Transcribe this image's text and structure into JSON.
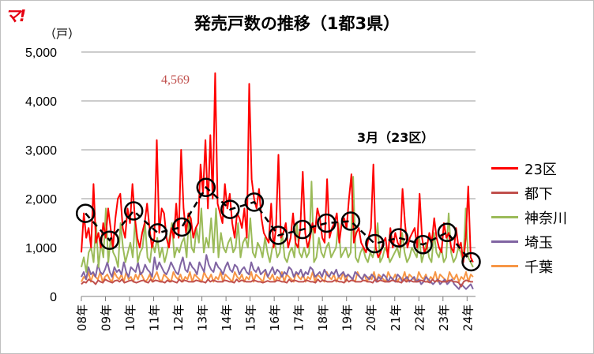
{
  "logo_text": "マ!",
  "chart_data": {
    "type": "line",
    "title": "発売戸数の推移（1都3県）",
    "ylabel": "（戸）",
    "ylim": [
      0,
      5000
    ],
    "yticks": [
      {
        "value": 0,
        "label": "0"
      },
      {
        "value": 1000,
        "label": "1,000"
      },
      {
        "value": 2000,
        "label": "2,000"
      },
      {
        "value": 3000,
        "label": "3,000"
      },
      {
        "value": 4000,
        "label": "4,000"
      },
      {
        "value": 5000,
        "label": "5,000"
      }
    ],
    "xticks": [
      "08年",
      "09年",
      "10年",
      "11年",
      "12年",
      "13年",
      "14年",
      "15年",
      "16年",
      "17年",
      "18年",
      "19年",
      "20年",
      "21年",
      "22年",
      "23年",
      "24年"
    ],
    "grid": true,
    "legend_position": "right",
    "annotations": [
      {
        "text": "4,569",
        "color": "#c0504d"
      },
      {
        "text": "3月（23区）",
        "color": "#000000"
      }
    ],
    "series": [
      {
        "name": "23区",
        "color": "#ff0000",
        "values": [
          900,
          1700,
          1200,
          1400,
          1000,
          2300,
          1100,
          1300,
          1000,
          1500,
          1200,
          1800,
          1400,
          1000,
          1600,
          2000,
          2100,
          1400,
          1200,
          1800,
          1500,
          2300,
          1600,
          1200,
          1000,
          1300,
          1500,
          1900,
          1400,
          1000,
          1200,
          3200,
          1300,
          1800,
          1700,
          1200,
          1000,
          1400,
          1200,
          1900,
          1200,
          3000,
          1800,
          1300,
          1700,
          1600,
          1200,
          1400,
          1500,
          2700,
          2100,
          3200,
          1800,
          3300,
          2000,
          4569,
          1900,
          1700,
          1500,
          2300,
          1800,
          2100,
          1500,
          1200,
          1700,
          1600,
          1400,
          1800,
          1200,
          4350,
          2400,
          2000,
          1800,
          2200,
          1600,
          1300,
          1200,
          1100,
          1900,
          1000,
          1400,
          2900,
          1200,
          1300,
          1500,
          1000,
          1200,
          1700,
          1100,
          1000,
          1400,
          2550,
          1300,
          1000,
          1200,
          1500,
          1300,
          1800,
          1600,
          1200,
          1100,
          2400,
          1200,
          1400,
          1500,
          1700,
          1100,
          1500,
          1600,
          1400,
          2000,
          2500,
          1100,
          1300,
          1400,
          1100,
          1000,
          900,
          1200,
          1400,
          2700,
          1000,
          800,
          900,
          1100,
          1200,
          800,
          1400,
          1000,
          1300,
          1100,
          1000,
          2200,
          1500,
          1000,
          1200,
          1300,
          1400,
          1000,
          2100,
          1200,
          900,
          1000,
          1300,
          1100,
          1600,
          1200,
          1000,
          900,
          1500,
          1200,
          1300,
          1000,
          900,
          1400,
          1000,
          1100,
          700,
          1200,
          2250,
          800,
          700
        ]
      },
      {
        "name": "都下",
        "color": "#c0504d",
        "values": [
          250,
          300,
          280,
          350,
          320,
          300,
          250,
          330,
          300,
          280,
          350,
          320,
          300,
          280,
          320,
          330,
          300,
          350,
          280,
          300,
          320,
          330,
          300,
          280,
          300,
          320,
          330,
          300,
          280,
          350,
          300,
          330,
          320,
          300,
          300,
          280,
          330,
          300,
          320,
          300,
          280,
          350,
          300,
          330,
          320,
          300,
          300,
          300,
          330,
          320,
          300,
          300,
          280,
          350,
          300,
          330,
          320,
          300,
          300,
          300,
          330,
          320,
          300,
          300,
          280,
          350,
          300,
          330,
          320,
          300,
          300,
          300,
          330,
          320,
          300,
          300,
          280,
          300,
          320,
          300,
          300,
          300,
          330,
          320,
          300,
          300,
          280,
          350,
          300,
          330,
          320,
          300,
          300,
          300,
          330,
          320,
          300,
          300,
          280,
          350,
          300,
          330,
          320,
          300,
          300,
          300,
          330,
          320,
          300,
          300,
          280,
          350,
          300,
          330,
          320,
          300,
          300,
          300,
          330,
          320,
          300,
          300,
          280,
          350,
          300,
          330,
          320,
          300,
          300,
          300,
          330,
          320,
          300,
          300,
          280,
          350,
          300,
          330,
          320,
          300,
          300,
          300,
          330,
          320,
          300,
          300,
          280,
          350,
          300,
          330,
          320,
          300,
          300,
          300,
          330,
          320,
          300,
          300,
          280,
          200,
          300,
          330,
          320,
          300,
          300
        ]
      },
      {
        "name": "神奈川",
        "color": "#9bbb59",
        "values": [
          600,
          800,
          500,
          900,
          1000,
          700,
          1500,
          600,
          1100,
          800,
          1800,
          700,
          1200,
          900,
          800,
          600,
          1500,
          1000,
          700,
          900,
          1100,
          800,
          1600,
          700,
          900,
          1000,
          1500,
          800,
          700,
          1100,
          900,
          1200,
          800,
          1000,
          700,
          900,
          1200,
          1500,
          800,
          1000,
          900,
          1100,
          1200,
          800,
          1700,
          1000,
          900,
          1400,
          1100,
          1800,
          900,
          1200,
          1000,
          1600,
          900,
          1800,
          800,
          1300,
          1000,
          900,
          1100,
          1200,
          900,
          1000,
          1500,
          800,
          1100,
          1200,
          1000,
          1600,
          900,
          800,
          1100,
          1000,
          800,
          1200,
          900,
          700,
          1000,
          1100,
          800,
          900,
          1300,
          800,
          700,
          900,
          1000,
          800,
          1500,
          900,
          800,
          1000,
          800,
          900,
          2350,
          700,
          800,
          1200,
          900,
          800,
          1000,
          1100,
          800,
          900,
          1000,
          1500,
          800,
          900,
          1000,
          800,
          900,
          2450,
          800,
          700,
          900,
          1000,
          800,
          700,
          900,
          800,
          1000,
          1500,
          700,
          800,
          1000,
          900,
          700,
          800,
          900,
          1000,
          800,
          1300,
          900,
          700,
          800,
          1000,
          900,
          800,
          1200,
          700,
          900,
          1100,
          800,
          700,
          1300,
          900,
          800,
          1000,
          700,
          800,
          1700,
          900,
          700,
          800,
          1000,
          900,
          700,
          1800,
          800,
          700,
          600
        ]
      },
      {
        "name": "埼玉",
        "color": "#8064a2",
        "values": [
          400,
          500,
          350,
          600,
          450,
          500,
          400,
          650,
          500,
          450,
          550,
          700,
          500,
          400,
          600,
          500,
          550,
          450,
          700,
          500,
          400,
          600,
          550,
          500,
          700,
          450,
          500,
          650,
          550,
          500,
          400,
          800,
          550,
          700,
          600,
          500,
          450,
          550,
          700,
          600,
          500,
          450,
          650,
          800,
          550,
          500,
          700,
          600,
          550,
          450,
          700,
          600,
          500,
          850,
          650,
          550,
          500,
          700,
          600,
          550,
          450,
          600,
          700,
          550,
          500,
          650,
          600,
          450,
          550,
          600,
          500,
          450,
          700,
          550,
          500,
          600,
          450,
          500,
          550,
          400,
          500,
          600,
          450,
          550,
          500,
          400,
          500,
          450,
          600,
          550,
          400,
          500,
          450,
          550,
          400,
          500,
          450,
          600,
          550,
          400,
          450,
          500,
          400,
          550,
          450,
          400,
          500,
          450,
          550,
          400,
          450,
          500,
          400,
          450,
          400,
          350,
          500,
          450,
          400,
          350,
          450,
          400,
          350,
          450,
          400,
          300,
          400,
          350,
          450,
          400,
          300,
          400,
          350,
          300,
          450,
          400,
          300,
          350,
          400,
          300,
          350,
          400,
          300,
          350,
          250,
          300,
          400,
          350,
          300,
          250,
          300,
          350,
          250,
          300,
          350,
          250,
          300,
          350,
          250,
          200,
          150,
          250,
          200,
          150,
          200,
          250,
          150
        ]
      },
      {
        "name": "千葉",
        "color": "#f79646",
        "values": [
          300,
          400,
          350,
          500,
          300,
          450,
          400,
          350,
          500,
          300,
          400,
          450,
          350,
          300,
          500,
          400,
          350,
          450,
          300,
          500,
          350,
          400,
          300,
          450,
          350,
          500,
          400,
          300,
          350,
          450,
          300,
          400,
          500,
          350,
          300,
          450,
          400,
          350,
          300,
          500,
          400,
          350,
          450,
          300,
          400,
          350,
          500,
          300,
          450,
          400,
          350,
          300,
          500,
          400,
          350,
          450,
          300,
          400,
          350,
          500,
          300,
          450,
          400,
          350,
          300,
          500,
          400,
          350,
          450,
          300,
          400,
          350,
          500,
          300,
          450,
          400,
          350,
          300,
          500,
          400,
          350,
          450,
          300,
          400,
          350,
          500,
          300,
          450,
          400,
          350,
          300,
          500,
          400,
          350,
          450,
          300,
          400,
          350,
          500,
          300,
          450,
          400,
          350,
          300,
          500,
          400,
          350,
          450,
          300,
          400,
          350,
          500,
          300,
          450,
          400,
          350,
          300,
          500,
          400,
          350,
          450,
          300,
          400,
          350,
          500,
          300,
          450,
          400,
          350,
          300,
          500,
          400,
          350,
          450,
          300,
          400,
          350,
          500,
          300,
          450,
          400,
          350,
          300,
          500,
          400,
          350,
          450,
          300,
          400,
          350,
          500,
          300,
          450,
          400,
          350,
          300,
          500,
          400,
          350,
          450,
          300,
          400,
          350,
          500,
          300,
          450,
          400
        ]
      },
      {
        "name": "3月（23区）",
        "color": "#000000",
        "style": "dashed-circle",
        "show_in_legend": false,
        "x": [
          2008.17,
          2009.17,
          2010.17,
          2011.17,
          2012.17,
          2013.17,
          2014.17,
          2015.17,
          2016.17,
          2017.17,
          2018.17,
          2019.17,
          2020.17,
          2021.17,
          2022.17,
          2023.17,
          2024.17
        ],
        "values": [
          1700,
          1150,
          1750,
          1300,
          1420,
          2230,
          1780,
          1930,
          1250,
          1370,
          1500,
          1540,
          1080,
          1200,
          1060,
          1310,
          710
        ]
      }
    ]
  }
}
